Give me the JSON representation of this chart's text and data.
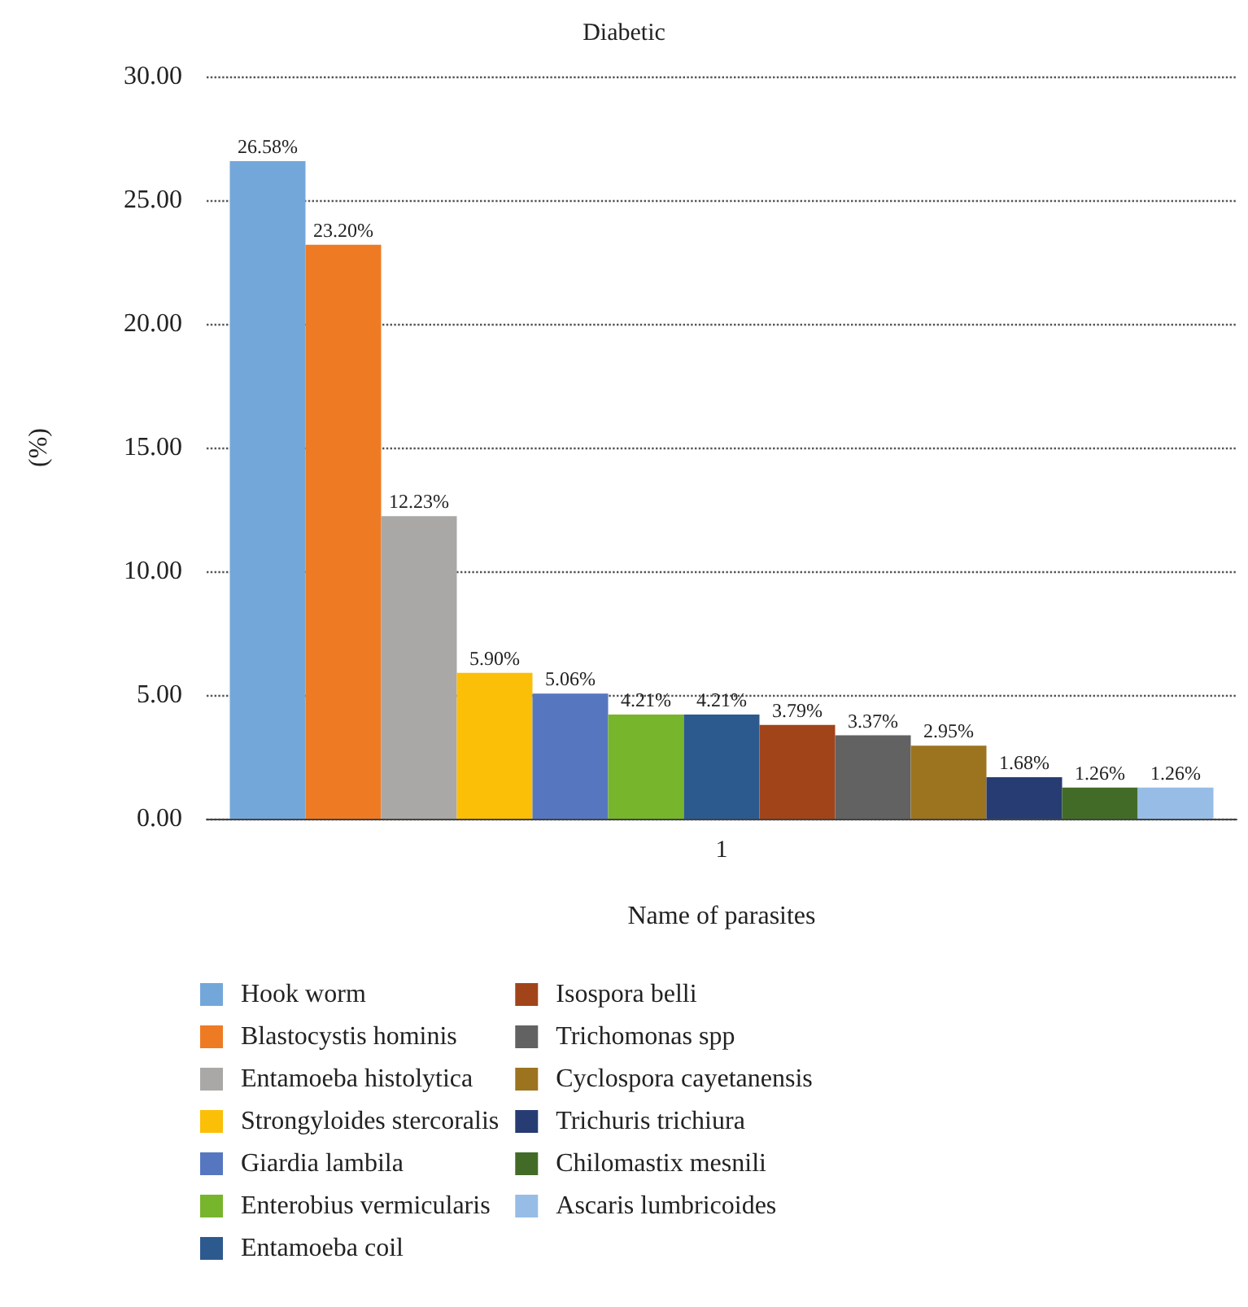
{
  "chart_data": {
    "type": "bar",
    "title": "Diabetic",
    "xlabel": "Name of parasites",
    "ylabel": "(%)",
    "categories": [
      "1"
    ],
    "series": [
      {
        "name": "Hook worm",
        "color": "#74a7d9",
        "values": [
          26.58
        ],
        "value_labels": [
          "26.58%"
        ]
      },
      {
        "name": "Blastocystis hominis",
        "color": "#ee7b24",
        "values": [
          23.2
        ],
        "value_labels": [
          "23.20%"
        ]
      },
      {
        "name": "Entamoeba histolytica",
        "color": "#aaa8a6",
        "values": [
          12.23
        ],
        "value_labels": [
          "12.23%"
        ]
      },
      {
        "name": "Strongyloides stercoralis",
        "color": "#fbbf07",
        "values": [
          5.9
        ],
        "value_labels": [
          "5.90%"
        ]
      },
      {
        "name": "Giardia lambila",
        "color": "#5677c0",
        "values": [
          5.06
        ],
        "value_labels": [
          "5.06%"
        ]
      },
      {
        "name": "Enterobius vermicularis",
        "color": "#77b52c",
        "values": [
          4.21
        ],
        "value_labels": [
          "4.21%"
        ]
      },
      {
        "name": "Entamoeba coil",
        "color": "#2d5a8e",
        "values": [
          4.21
        ],
        "value_labels": [
          "4.21%"
        ]
      },
      {
        "name": "Isospora belli",
        "color": "#a1441a",
        "values": [
          3.79
        ],
        "value_labels": [
          "3.79%"
        ]
      },
      {
        "name": "Trichomonas spp",
        "color": "#626262",
        "values": [
          3.37
        ],
        "value_labels": [
          "3.37%"
        ]
      },
      {
        "name": "Cyclospora cayetanensis",
        "color": "#9c7420",
        "values": [
          2.95
        ],
        "value_labels": [
          "2.95%"
        ]
      },
      {
        "name": "Trichuris trichiura",
        "color": "#273c72",
        "values": [
          1.68
        ],
        "value_labels": [
          "1.68%"
        ]
      },
      {
        "name": "Chilomastix mesnili",
        "color": "#436b28",
        "values": [
          1.26
        ],
        "value_labels": [
          "1.26%"
        ]
      },
      {
        "name": "Ascaris lumbricoides",
        "color": "#97bde6",
        "values": [
          1.26
        ],
        "value_labels": [
          "1.26%"
        ]
      }
    ],
    "ylim": [
      0,
      30
    ],
    "yticks": [
      {
        "value": 0,
        "label": "0.00"
      },
      {
        "value": 5,
        "label": "5.00"
      },
      {
        "value": 10,
        "label": "10.00"
      },
      {
        "value": 15,
        "label": "15.00"
      },
      {
        "value": 20,
        "label": "20.00"
      },
      {
        "value": 25,
        "label": "25.00"
      },
      {
        "value": 30,
        "label": "30.00"
      }
    ],
    "grid": "y",
    "legend": "bottom"
  }
}
